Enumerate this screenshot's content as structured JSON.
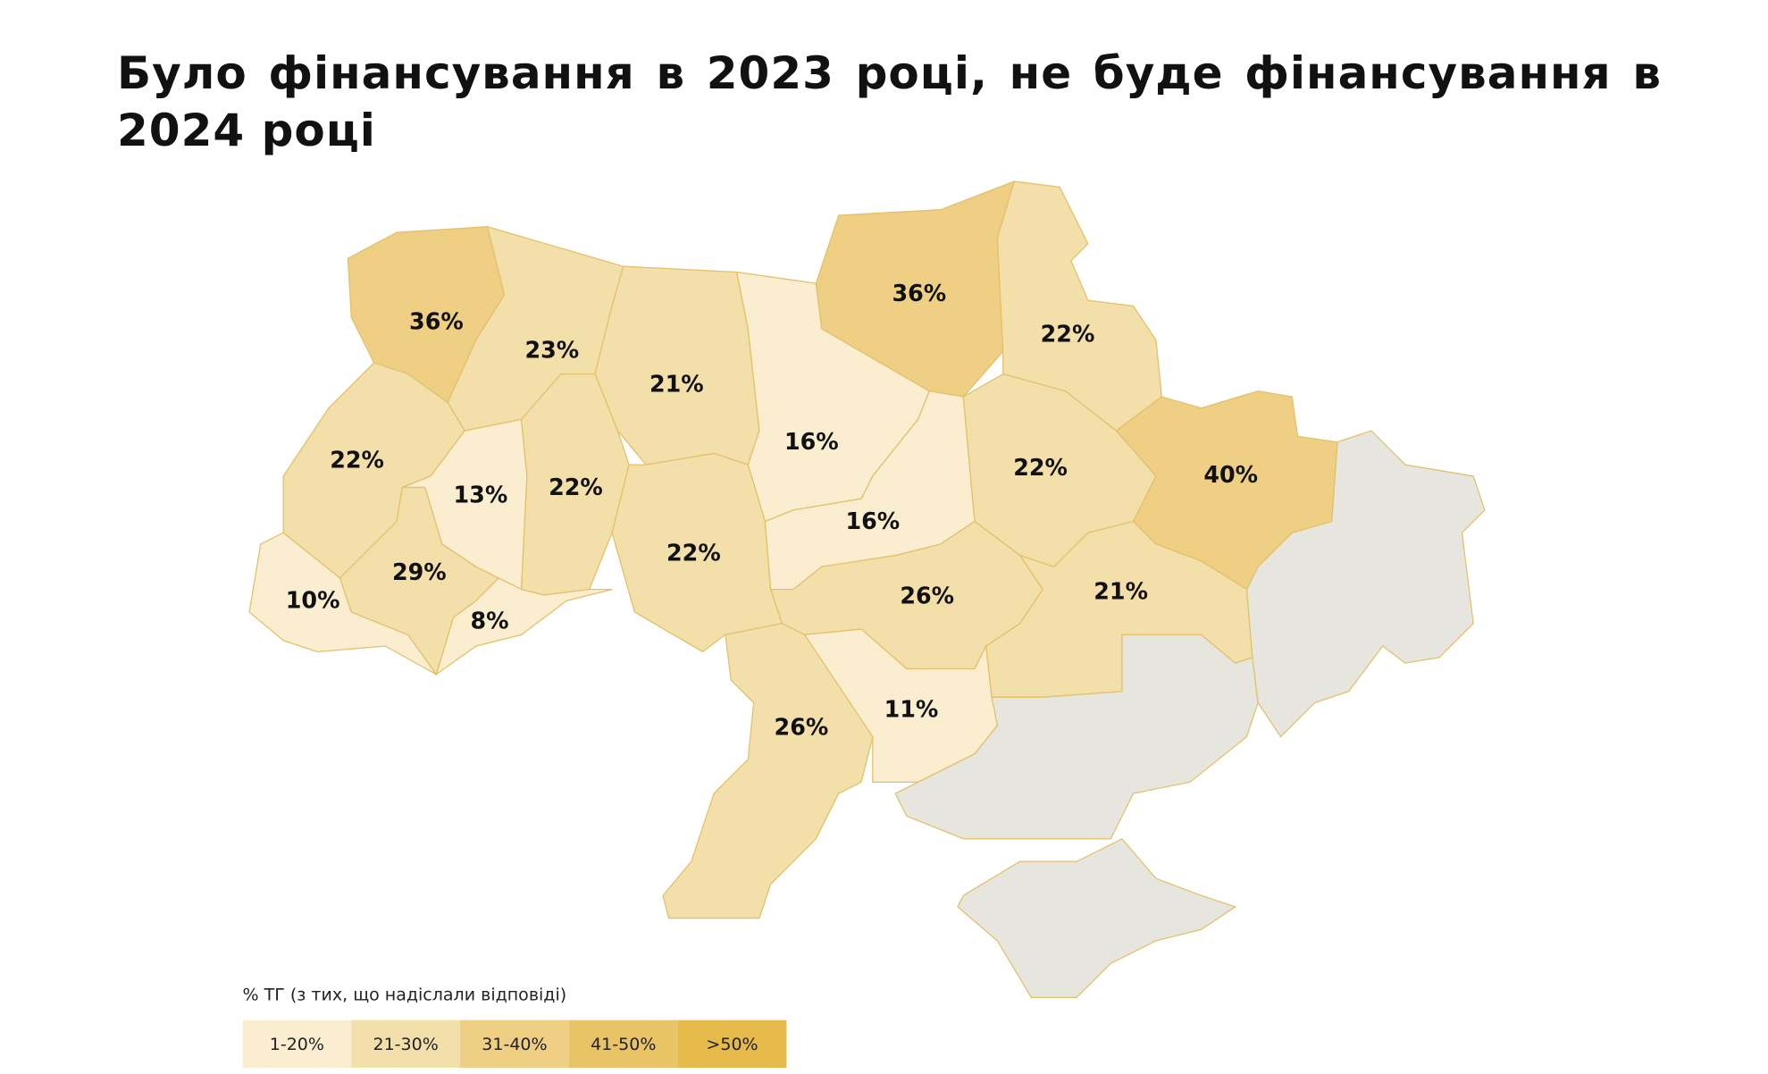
{
  "chart_data": {
    "type": "choropleth",
    "title": "Було фінансування в 2023 році, не буде фінансування в 2024 році",
    "values": [
      36,
      23,
      21,
      16,
      36,
      22,
      22,
      13,
      22,
      22,
      16,
      22,
      40,
      10,
      29,
      8,
      26,
      21,
      26,
      11
    ],
    "value_labels": [
      "36%",
      "23%",
      "21%",
      "16%",
      "36%",
      "22%",
      "22%",
      "13%",
      "22%",
      "22%",
      "16%",
      "22%",
      "40%",
      "10%",
      "29%",
      "8%",
      "26%",
      "21%",
      "26%",
      "11%"
    ],
    "no_data_color": "#e6e5de",
    "legend": {
      "title": "% ТГ (з тих, що надіслали відповіді)",
      "bins": [
        {
          "min": 1,
          "max": 20,
          "label": "1-20%",
          "color": "#faedd0"
        },
        {
          "min": 21,
          "max": 30,
          "label": "21-30%",
          "color": "#f3dfa9"
        },
        {
          "min": 31,
          "max": 40,
          "label": "31-40%",
          "color": "#eecf83"
        },
        {
          "min": 41,
          "max": 50,
          "label": "41-50%",
          "color": "#e9c466"
        },
        {
          "min": 50,
          "label": ">50%",
          "color": "#e5b94a"
        }
      ]
    }
  }
}
